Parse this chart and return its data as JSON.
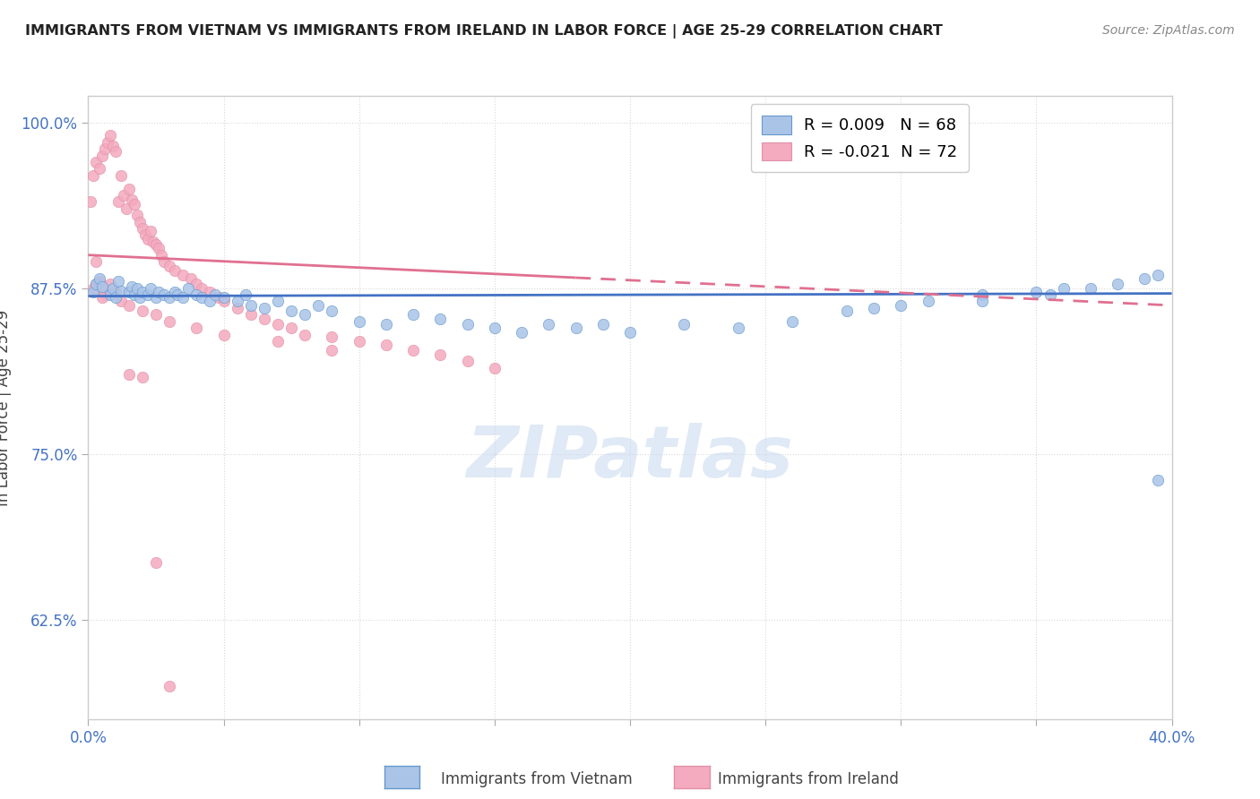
{
  "title": "IMMIGRANTS FROM VIETNAM VS IMMIGRANTS FROM IRELAND IN LABOR FORCE | AGE 25-29 CORRELATION CHART",
  "source": "Source: ZipAtlas.com",
  "ylabel": "In Labor Force | Age 25-29",
  "xlim": [
    0.0,
    0.4
  ],
  "ylim": [
    0.55,
    1.02
  ],
  "xticks": [
    0.0,
    0.05,
    0.1,
    0.15,
    0.2,
    0.25,
    0.3,
    0.35,
    0.4
  ],
  "xticklabels": [
    "0.0%",
    "",
    "",
    "",
    "",
    "",
    "",
    "",
    "40.0%"
  ],
  "yticks": [
    0.625,
    0.75,
    0.875,
    1.0
  ],
  "yticklabels": [
    "62.5%",
    "75.0%",
    "87.5%",
    "100.0%"
  ],
  "color_vietnam": "#aac4e8",
  "color_ireland": "#f4aabf",
  "color_trend_vietnam": "#4472c4",
  "color_trend_ireland": "#e07090",
  "background_color": "#ffffff",
  "grid_color": "#d8d8d8",
  "vietnam_x": [
    0.002,
    0.003,
    0.004,
    0.005,
    0.008,
    0.009,
    0.01,
    0.011,
    0.012,
    0.015,
    0.016,
    0.017,
    0.018,
    0.019,
    0.02,
    0.022,
    0.023,
    0.025,
    0.026,
    0.028,
    0.03,
    0.032,
    0.033,
    0.035,
    0.037,
    0.04,
    0.042,
    0.045,
    0.047,
    0.05,
    0.055,
    0.058,
    0.06,
    0.065,
    0.07,
    0.075,
    0.08,
    0.085,
    0.09,
    0.1,
    0.11,
    0.12,
    0.13,
    0.14,
    0.15,
    0.16,
    0.17,
    0.18,
    0.19,
    0.2,
    0.22,
    0.24,
    0.26,
    0.28,
    0.3,
    0.31,
    0.33,
    0.35,
    0.36,
    0.38,
    0.39,
    0.395,
    0.33,
    0.355,
    0.37,
    0.29,
    0.395
  ],
  "vietnam_y": [
    0.872,
    0.878,
    0.882,
    0.876,
    0.87,
    0.875,
    0.868,
    0.88,
    0.873,
    0.872,
    0.876,
    0.87,
    0.875,
    0.868,
    0.872,
    0.87,
    0.875,
    0.868,
    0.872,
    0.87,
    0.868,
    0.872,
    0.87,
    0.868,
    0.875,
    0.87,
    0.868,
    0.865,
    0.87,
    0.868,
    0.865,
    0.87,
    0.862,
    0.86,
    0.865,
    0.858,
    0.855,
    0.862,
    0.858,
    0.85,
    0.848,
    0.855,
    0.852,
    0.848,
    0.845,
    0.842,
    0.848,
    0.845,
    0.848,
    0.842,
    0.848,
    0.845,
    0.85,
    0.858,
    0.862,
    0.865,
    0.87,
    0.872,
    0.875,
    0.878,
    0.882,
    0.885,
    0.865,
    0.87,
    0.875,
    0.86,
    0.73
  ],
  "ireland_x": [
    0.001,
    0.002,
    0.003,
    0.004,
    0.005,
    0.006,
    0.007,
    0.008,
    0.009,
    0.01,
    0.011,
    0.012,
    0.013,
    0.014,
    0.015,
    0.016,
    0.017,
    0.018,
    0.019,
    0.02,
    0.021,
    0.022,
    0.023,
    0.024,
    0.025,
    0.026,
    0.027,
    0.028,
    0.03,
    0.032,
    0.035,
    0.038,
    0.04,
    0.042,
    0.045,
    0.048,
    0.05,
    0.055,
    0.06,
    0.065,
    0.07,
    0.075,
    0.08,
    0.09,
    0.1,
    0.11,
    0.12,
    0.13,
    0.14,
    0.15,
    0.002,
    0.003,
    0.004,
    0.005,
    0.006,
    0.003,
    0.005,
    0.008,
    0.01,
    0.012,
    0.015,
    0.02,
    0.025,
    0.03,
    0.04,
    0.05,
    0.07,
    0.09,
    0.015,
    0.02,
    0.025,
    0.03
  ],
  "ireland_y": [
    0.94,
    0.96,
    0.97,
    0.965,
    0.975,
    0.98,
    0.985,
    0.99,
    0.982,
    0.978,
    0.94,
    0.96,
    0.945,
    0.935,
    0.95,
    0.942,
    0.938,
    0.93,
    0.925,
    0.92,
    0.915,
    0.912,
    0.918,
    0.91,
    0.908,
    0.905,
    0.9,
    0.895,
    0.892,
    0.888,
    0.885,
    0.882,
    0.878,
    0.875,
    0.872,
    0.868,
    0.865,
    0.86,
    0.855,
    0.852,
    0.848,
    0.845,
    0.84,
    0.838,
    0.835,
    0.832,
    0.828,
    0.825,
    0.82,
    0.815,
    0.875,
    0.878,
    0.88,
    0.872,
    0.87,
    0.895,
    0.868,
    0.878,
    0.872,
    0.865,
    0.862,
    0.858,
    0.855,
    0.85,
    0.845,
    0.84,
    0.835,
    0.828,
    0.81,
    0.808,
    0.668,
    0.575
  ]
}
